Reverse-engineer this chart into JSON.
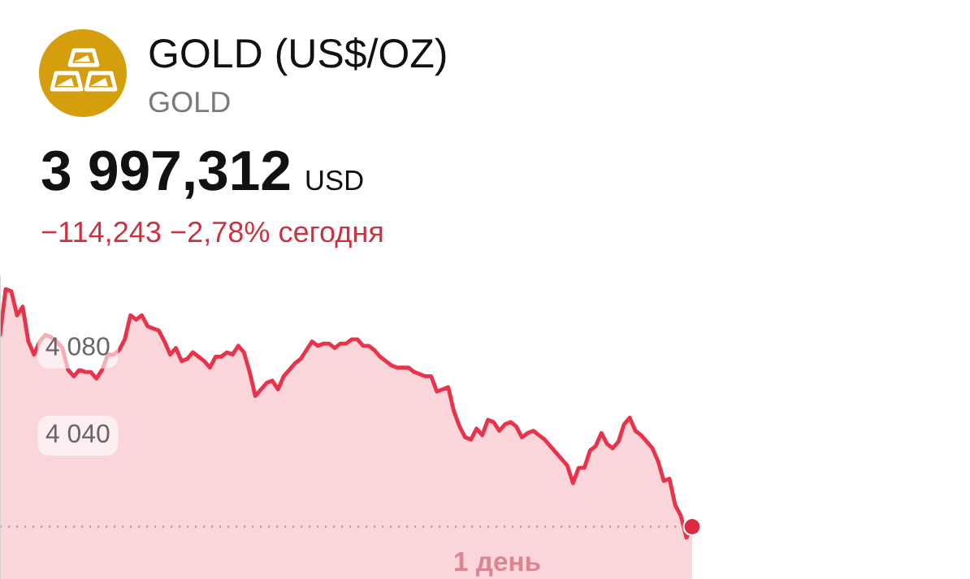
{
  "chart_data": {
    "type": "area",
    "title": "GOLD (US$/OZ)",
    "subtitle": "GOLD",
    "annotations": [
      "3 997,312",
      "USD",
      "−114,243 −2,78% сегодня",
      "1 день"
    ],
    "categories": [
      null,
      null,
      null,
      null,
      null,
      null,
      null,
      null,
      null,
      null,
      null,
      null,
      null,
      null,
      null,
      null,
      null,
      null,
      null,
      null,
      null,
      null,
      null,
      null,
      null,
      null,
      null,
      null,
      null,
      null,
      null,
      null,
      null,
      null,
      null,
      null,
      null,
      null,
      null,
      null,
      null,
      null,
      null,
      null,
      null,
      null,
      null,
      null,
      null,
      null,
      null,
      null,
      null,
      null,
      null,
      null,
      null,
      null,
      null,
      null,
      null,
      null,
      null,
      null,
      null,
      null,
      null,
      null,
      null,
      null,
      null,
      null,
      null,
      null,
      null,
      null,
      null,
      null,
      null,
      null,
      null,
      null,
      null,
      null,
      null,
      null,
      null,
      null,
      null,
      null,
      null,
      null,
      null,
      null,
      null,
      null,
      null,
      null,
      null,
      null,
      null,
      null,
      null,
      null,
      null,
      null,
      null,
      null,
      null,
      null,
      null,
      null,
      null,
      null,
      null,
      null,
      null,
      null,
      null,
      null,
      null,
      null,
      null
    ],
    "series": [
      {
        "color": "#e8334a",
        "values": [
          4085,
          4106,
          4105,
          4094,
          4098,
          4082,
          4076,
          4082,
          4085,
          4084,
          4082,
          4079,
          4069,
          4066,
          4069,
          4068,
          4068,
          4065,
          4069,
          4076,
          4076,
          4078,
          4083,
          4094,
          4092,
          4094,
          4089,
          4088,
          4087,
          4082,
          4076,
          4079,
          4073,
          4074,
          4077,
          4075,
          4073,
          4070,
          4075,
          4075,
          4077,
          4076,
          4080,
          4077,
          4068,
          4057,
          4060,
          4063,
          4064,
          4060,
          4066,
          4069,
          4072,
          4074,
          4078,
          4082,
          4080,
          4081,
          4081,
          4079,
          4081,
          4081,
          4083,
          4083,
          4080,
          4080,
          4078,
          4075,
          4073,
          4071,
          4070,
          4070,
          4070,
          4068,
          4067,
          4066,
          4066,
          4059,
          4060,
          4061,
          4050,
          4043,
          4038,
          4037,
          4042,
          4039,
          4046,
          4045,
          4041,
          4044,
          4045,
          4043,
          4038,
          4040,
          4041,
          4039,
          4037,
          4034,
          4031,
          4028,
          4025,
          4017,
          4024,
          4024,
          4032,
          4034,
          4040,
          4035,
          4033,
          4036,
          4044,
          4047,
          4041,
          4039,
          4036,
          4033,
          4027,
          4018,
          4019,
          4007,
          4002,
          3992,
          3997
        ]
      },
      {
        "type": "scatter",
        "color": "#dc2a40",
        "marker": "circle",
        "values": [
          null,
          null,
          null,
          null,
          null,
          null,
          null,
          null,
          null,
          null,
          null,
          null,
          null,
          null,
          null,
          null,
          null,
          null,
          null,
          null,
          null,
          null,
          null,
          null,
          null,
          null,
          null,
          null,
          null,
          null,
          null,
          null,
          null,
          null,
          null,
          null,
          null,
          null,
          null,
          null,
          null,
          null,
          null,
          null,
          null,
          null,
          null,
          null,
          null,
          null,
          null,
          null,
          null,
          null,
          null,
          null,
          null,
          null,
          null,
          null,
          null,
          null,
          null,
          null,
          null,
          null,
          null,
          null,
          null,
          null,
          null,
          null,
          null,
          null,
          null,
          null,
          null,
          null,
          null,
          null,
          null,
          null,
          null,
          null,
          null,
          null,
          null,
          null,
          null,
          null,
          null,
          null,
          null,
          null,
          null,
          null,
          null,
          null,
          null,
          null,
          null,
          null,
          null,
          null,
          null,
          null,
          null,
          null,
          null,
          null,
          null,
          null,
          null,
          null,
          null,
          null,
          null,
          null,
          null,
          null,
          null,
          null,
          3997
        ]
      }
    ],
    "ylim": [
      3973,
      4112
    ],
    "yticks": [
      {
        "value": 4080,
        "label": "4 080"
      },
      {
        "value": 4040,
        "label": "4 040"
      }
    ],
    "ref_lines": [
      {
        "axis": "y",
        "value": 3997,
        "color": "#9e9e9e",
        "line_style": "dotted"
      }
    ],
    "tick_labels": "y",
    "grid": false
  }
}
